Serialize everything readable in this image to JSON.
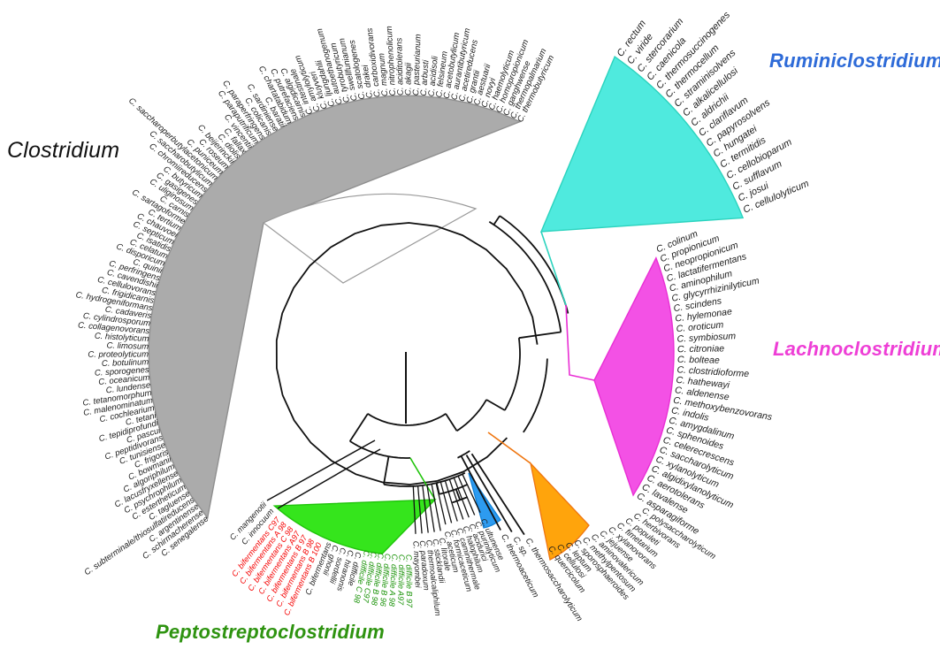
{
  "figure": {
    "type": "circular-phylogenetic-tree",
    "description": "Phylogenetic tree of Clostridium species with collapsed clades shown as colored wedges"
  },
  "chart_data": {
    "type": "table",
    "title": "Clostridium phylogeny clusters",
    "legend_position": "around-figure",
    "clusters": [
      "Clostridium",
      "Ruminiclostridium",
      "Lachnoclostridium",
      "Peptostreptoclostridium"
    ]
  },
  "clades": {
    "clostridium": {
      "label": "Clostridium",
      "label_color": "#111111",
      "wedge_color": "#ababab",
      "wedge_stroke": "#8f8f8f",
      "species": [
        "C. senegalense",
        "C. schirmacherense",
        "C. argentinense",
        "C. subterminale/thiosulfatireducens",
        "C. tagluense",
        "C. estertheticum",
        "C. psychrophilum",
        "C. lacusfryxellense",
        "C. algoriphilum",
        "C. bowmanii",
        "C. frigoris",
        "C. tunisiense",
        "C. peptidivorans",
        "C. pascui",
        "C. tepidiprofundi",
        "C. tetani",
        "C. cochlearium",
        "C. malenominatum",
        "C. tetanomorphum",
        "C. lundense",
        "C. oceanicum",
        "C. sporogenes",
        "C. botulinum",
        "C. proteolyticum",
        "C. limosum",
        "C. histolyticum",
        "C. collagenovorans",
        "C. cylindrosporum",
        "C. cadaveris",
        "C. hydrogeniformans",
        "C. frigidicarnis",
        "C. cellulovorans",
        "C. cavendishii",
        "C. perfringens",
        "C. quinii",
        "C. disporicum",
        "C. celatum",
        "C. isatidis",
        "C. septicum",
        "C. chauvoei",
        "C. tertium",
        "C. sartagoforme",
        "C. carnis",
        "C. uliginosum",
        "C. gasigenes",
        "C. butyricum",
        "C. chromiireducens",
        "C. saccharobutylicum",
        "C. saccharoperbutylacetonicum",
        "C. puniceum",
        "C. roseum",
        "C. beijerinckii",
        "C. diolis",
        "C. fallax",
        "C. vincentii",
        "C. paraputrificum",
        "C. paraperfringens",
        "C. colicanis",
        "C. sardiniense",
        "C. baratii",
        "C. chartatabidum",
        "C. putrefaciens",
        "C. algidicarnis",
        "C. intestinale",
        "C. amylolyticum",
        "C. kluyveri",
        "C. ljungdahlii",
        "C. autoethanogenum",
        "C. tyrobutyricum",
        "C. swellfunianum",
        "C. scatologenes",
        "C. drakei",
        "C. carboxidivorans",
        "C. magnum",
        "C. nitrophenolicum",
        "C. aciditolerans",
        "C. akagii",
        "C. pasteurianum",
        "C. arbusti",
        "C. acidisoli",
        "C. felsineum",
        "C. acetobutylicum",
        "C. aurantibutyricum",
        "C. acetireducens",
        "C. grantii",
        "C. aestuarii",
        "C. novyi",
        "C. haemolyticum",
        "C. homopropionicum",
        "C. ganghwense",
        "C. thermopalmarium",
        "C. thermobutyricum"
      ]
    },
    "ruminiclostridium": {
      "label": "Ruminiclostridium",
      "label_color": "#2e6bd8",
      "wedge_color": "#4feade",
      "wedge_stroke": "#2bd3be",
      "species": [
        "C. rectum",
        "C. viride",
        "C. stercorarium",
        "C. caenicola",
        "C. thermosuccinogenes",
        "C. thermocellum",
        "C. straminisolvens",
        "C. alkalicellulosi",
        "C. aldrichii",
        "C. clariflavum",
        "C. papyrosolvens",
        "C. hungatei",
        "C. termitidis",
        "C. cellobioparum",
        "C. sufflavum",
        "C. josui",
        "C. cellulolyticum"
      ]
    },
    "lachnoclostridium": {
      "label": "Lachnoclostridium",
      "label_color": "#ee3fd6",
      "wedge_color": "#f351e5",
      "wedge_stroke": "#e92fd4",
      "species": [
        "C. colinum",
        "C. propionicum",
        "C. neopropionicum",
        "C. lactatifermentans",
        "C. aminophilum",
        "C. glycyrrhizinilyticum",
        "C. scindens",
        "C. hylemonae",
        "C. oroticum",
        "C. symbiosum",
        "C. citroniae",
        "C. bolteae",
        "C. clostridioforme",
        "C. hathewayi",
        "C. aldenense",
        "C. methoxybenzovorans",
        "C. indolis",
        "C. amygdalinum",
        "C. sphenoides",
        "C. celerecrescens",
        "C. saccharolyticum",
        "C. xylanolyticum",
        "C. algidixylanolyticum",
        "C. aerotolerans",
        "C. lavalense",
        "C. asparagiforme"
      ]
    },
    "peptostreptoclostridium": {
      "label": "Peptostreptoclostridium",
      "label_color": "#2e9310",
      "wedge_color": "#35e51c",
      "wedge_stroke": "#1fc40a"
    },
    "blue_clade": {
      "wedge_color": "#2d9bf0",
      "wedge_stroke": "#0f81d8"
    },
    "orange_clade": {
      "wedge_color": "#ffa40c",
      "wedge_stroke": "#ef7610"
    }
  },
  "outer_groups": {
    "lachno_adjacent": [
      "C. polysaccharolyticum",
      "C. herbivorans",
      "C. populeti",
      "C. fimetarium",
      "C. xylanovorans",
      "C. jejuense",
      "C. aminovalericum",
      "C. methylpentosum",
      "C. sporosphaeroides",
      "C. leptum",
      "C. cellulosi",
      "C. quercicolum"
    ],
    "thermo_group": [
      "C. thermosaccharolyticum",
      "C. sp.",
      "C. thermoaceticum"
    ],
    "bottom_left_1": [
      "C. mangenotii",
      "C. innocuum"
    ],
    "bifermentans_strains": [
      "C. bifermentans C97",
      "C. bifermentans A 98",
      "C. bifermentans C 98",
      "C. bifermentans A97",
      "C. bifermentans B 97",
      "C. bifermentans B 98",
      "C. bifermentans B 100"
    ],
    "bottom_left_2": [
      "C. bifermentans",
      "C. ghonii",
      "C. sordellii",
      "C. hiranonis",
      "C. difficile"
    ],
    "difficile_strains": [
      "C. difficile C 98",
      "C. difficile C97",
      "C. difficile B 98",
      "C. difficile B 96",
      "C. difficile A 98",
      "C. difficile A97",
      "C. difficile B 97"
    ],
    "bottom_left_3": [
      "C. mayombei",
      "C. paradoxum",
      "C. thermoalcaliphilum",
      "C. sticklandii",
      "C. litorale"
    ],
    "bottom_left_4": [
      "C. aceticum",
      "C. formicaceticum",
      "C. caminithermale",
      "C. halophilum",
      "C. acidurici",
      "C. purinilyticum",
      "C. ultunense"
    ]
  },
  "text_colors": {
    "default": "#1a1a1a",
    "red_strains": "#f50000",
    "green_strains": "#169104"
  }
}
